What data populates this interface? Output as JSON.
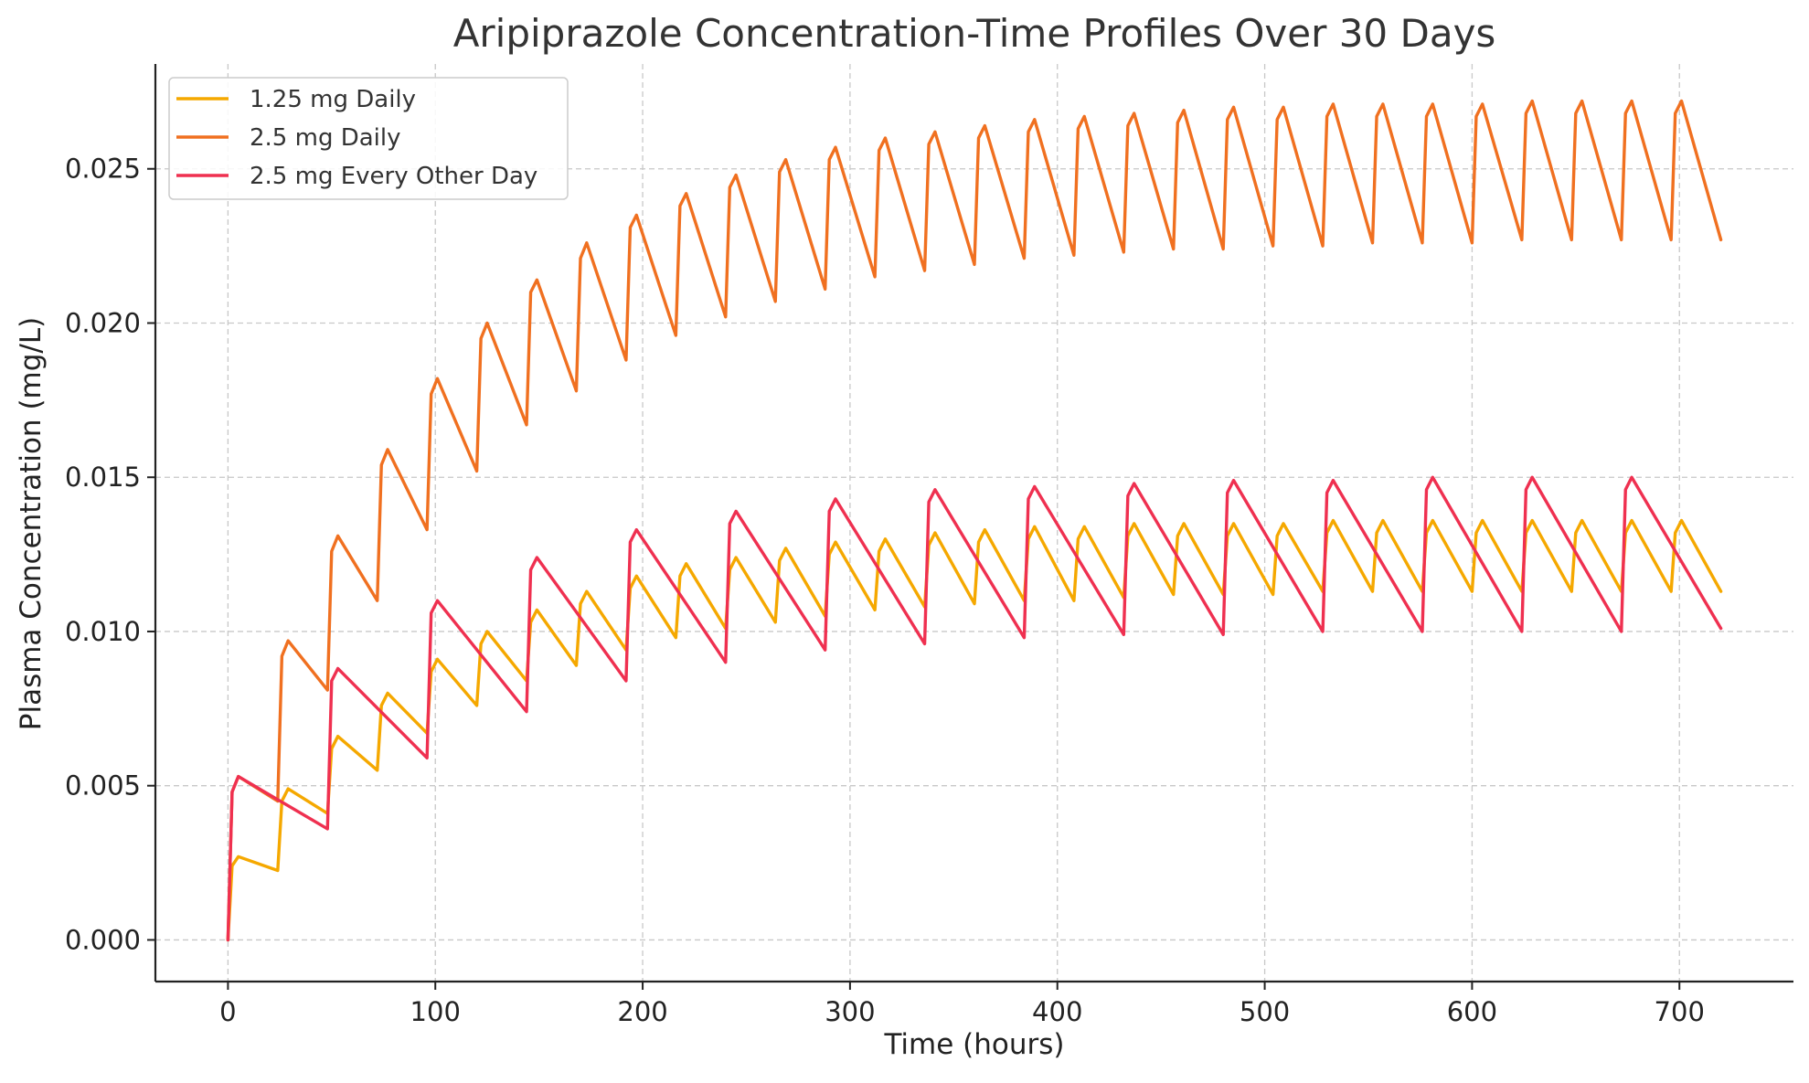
{
  "chart_data": {
    "type": "line",
    "title": "Aripiprazole Concentration-Time Profiles Over 30 Days",
    "xlabel": "Time (hours)",
    "ylabel": "Plasma Concentration (mg/L)",
    "xlim": [
      -35,
      755
    ],
    "ylim": [
      -0.00135,
      0.0284
    ],
    "xticks": [
      0,
      100,
      200,
      300,
      400,
      500,
      600,
      700
    ],
    "xtick_labels": [
      "0",
      "100",
      "200",
      "300",
      "400",
      "500",
      "600",
      "700"
    ],
    "yticks": [
      0.0,
      0.005,
      0.01,
      0.015,
      0.02,
      0.025
    ],
    "ytick_labels": [
      "0.000",
      "0.005",
      "0.010",
      "0.015",
      "0.020",
      "0.025"
    ],
    "grid": true,
    "legend_position": "top-left",
    "series": [
      {
        "name": "1.25 mg Daily",
        "color": "#f5a800",
        "x": [
          0,
          2,
          5,
          24,
          26,
          29,
          48,
          50,
          53,
          72,
          74,
          77,
          96,
          98,
          101,
          120,
          122,
          125,
          144,
          146,
          149,
          168,
          170,
          173,
          192,
          194,
          197,
          216,
          218,
          221,
          240,
          242,
          245,
          264,
          266,
          269,
          288,
          290,
          293,
          312,
          314,
          317,
          336,
          338,
          341,
          360,
          362,
          365,
          384,
          386,
          389,
          408,
          410,
          413,
          432,
          434,
          437,
          456,
          458,
          461,
          480,
          482,
          485,
          504,
          506,
          509,
          528,
          530,
          533,
          552,
          554,
          557,
          576,
          578,
          581,
          600,
          602,
          605,
          624,
          626,
          629,
          648,
          650,
          653,
          672,
          674,
          677,
          696,
          698,
          701,
          720
        ],
        "y": [
          0.0,
          0.0024,
          0.0027,
          0.00225,
          0.0045,
          0.0049,
          0.0041,
          0.0062,
          0.0066,
          0.0055,
          0.0076,
          0.008,
          0.0067,
          0.0087,
          0.0091,
          0.0076,
          0.0096,
          0.01,
          0.0084,
          0.0103,
          0.0107,
          0.0089,
          0.0109,
          0.0113,
          0.0094,
          0.0114,
          0.0118,
          0.0098,
          0.0118,
          0.0122,
          0.0101,
          0.012,
          0.0124,
          0.0103,
          0.0123,
          0.0127,
          0.0105,
          0.0125,
          0.0129,
          0.0107,
          0.0126,
          0.013,
          0.0108,
          0.0128,
          0.0132,
          0.0109,
          0.0129,
          0.0133,
          0.011,
          0.013,
          0.0134,
          0.011,
          0.013,
          0.0134,
          0.0111,
          0.0131,
          0.0135,
          0.0112,
          0.0131,
          0.0135,
          0.0112,
          0.0131,
          0.0135,
          0.0112,
          0.0131,
          0.0135,
          0.0113,
          0.0132,
          0.0136,
          0.0113,
          0.0132,
          0.0136,
          0.0113,
          0.0132,
          0.0136,
          0.0113,
          0.0132,
          0.0136,
          0.0113,
          0.0132,
          0.0136,
          0.0113,
          0.0132,
          0.0136,
          0.0113,
          0.0132,
          0.0136,
          0.0113,
          0.0132,
          0.0136,
          0.0113
        ]
      },
      {
        "name": "2.5 mg Daily",
        "color": "#f07020",
        "x": [
          0,
          2,
          5,
          24,
          26,
          29,
          48,
          50,
          53,
          72,
          74,
          77,
          96,
          98,
          101,
          120,
          122,
          125,
          144,
          146,
          149,
          168,
          170,
          173,
          192,
          194,
          197,
          216,
          218,
          221,
          240,
          242,
          245,
          264,
          266,
          269,
          288,
          290,
          293,
          312,
          314,
          317,
          336,
          338,
          341,
          360,
          362,
          365,
          384,
          386,
          389,
          408,
          410,
          413,
          432,
          434,
          437,
          456,
          458,
          461,
          480,
          482,
          485,
          504,
          506,
          509,
          528,
          530,
          533,
          552,
          554,
          557,
          576,
          578,
          581,
          600,
          602,
          605,
          624,
          626,
          629,
          648,
          650,
          653,
          672,
          674,
          677,
          696,
          698,
          701,
          720
        ],
        "y": [
          0.0,
          0.0048,
          0.0053,
          0.0045,
          0.0092,
          0.0097,
          0.0081,
          0.0126,
          0.0131,
          0.011,
          0.0154,
          0.0159,
          0.0133,
          0.0177,
          0.0182,
          0.0152,
          0.0195,
          0.02,
          0.0167,
          0.021,
          0.0214,
          0.0178,
          0.0221,
          0.0226,
          0.0188,
          0.0231,
          0.0235,
          0.0196,
          0.0238,
          0.0242,
          0.0202,
          0.0244,
          0.0248,
          0.0207,
          0.0249,
          0.0253,
          0.0211,
          0.0253,
          0.0257,
          0.0215,
          0.0256,
          0.026,
          0.0217,
          0.0258,
          0.0262,
          0.0219,
          0.026,
          0.0264,
          0.0221,
          0.0262,
          0.0266,
          0.0222,
          0.0263,
          0.0267,
          0.0223,
          0.0264,
          0.0268,
          0.0224,
          0.0265,
          0.0269,
          0.0224,
          0.0266,
          0.027,
          0.0225,
          0.0266,
          0.027,
          0.0225,
          0.0267,
          0.0271,
          0.0226,
          0.0267,
          0.0271,
          0.0226,
          0.0267,
          0.0271,
          0.0226,
          0.0267,
          0.0271,
          0.0227,
          0.0268,
          0.0272,
          0.0227,
          0.0268,
          0.0272,
          0.0227,
          0.0268,
          0.0272,
          0.0227,
          0.0268,
          0.0272,
          0.0227
        ]
      },
      {
        "name": "2.5 mg Every Other Day",
        "color": "#ef3050",
        "x": [
          0,
          2,
          5,
          48,
          50,
          53,
          96,
          98,
          101,
          144,
          146,
          149,
          192,
          194,
          197,
          240,
          242,
          245,
          288,
          290,
          293,
          336,
          338,
          341,
          384,
          386,
          389,
          432,
          434,
          437,
          480,
          482,
          485,
          528,
          530,
          533,
          576,
          578,
          581,
          624,
          626,
          629,
          672,
          674,
          677,
          720
        ],
        "y": [
          0.0,
          0.0048,
          0.0053,
          0.0036,
          0.0084,
          0.0088,
          0.0059,
          0.0106,
          0.011,
          0.0074,
          0.012,
          0.0124,
          0.0084,
          0.0129,
          0.0133,
          0.009,
          0.0135,
          0.0139,
          0.0094,
          0.0139,
          0.0143,
          0.0096,
          0.0142,
          0.0146,
          0.0098,
          0.0143,
          0.0147,
          0.0099,
          0.0144,
          0.0148,
          0.0099,
          0.0145,
          0.0149,
          0.01,
          0.0145,
          0.0149,
          0.01,
          0.0146,
          0.015,
          0.01,
          0.0146,
          0.015,
          0.01,
          0.0146,
          0.015,
          0.0101
        ]
      }
    ]
  }
}
